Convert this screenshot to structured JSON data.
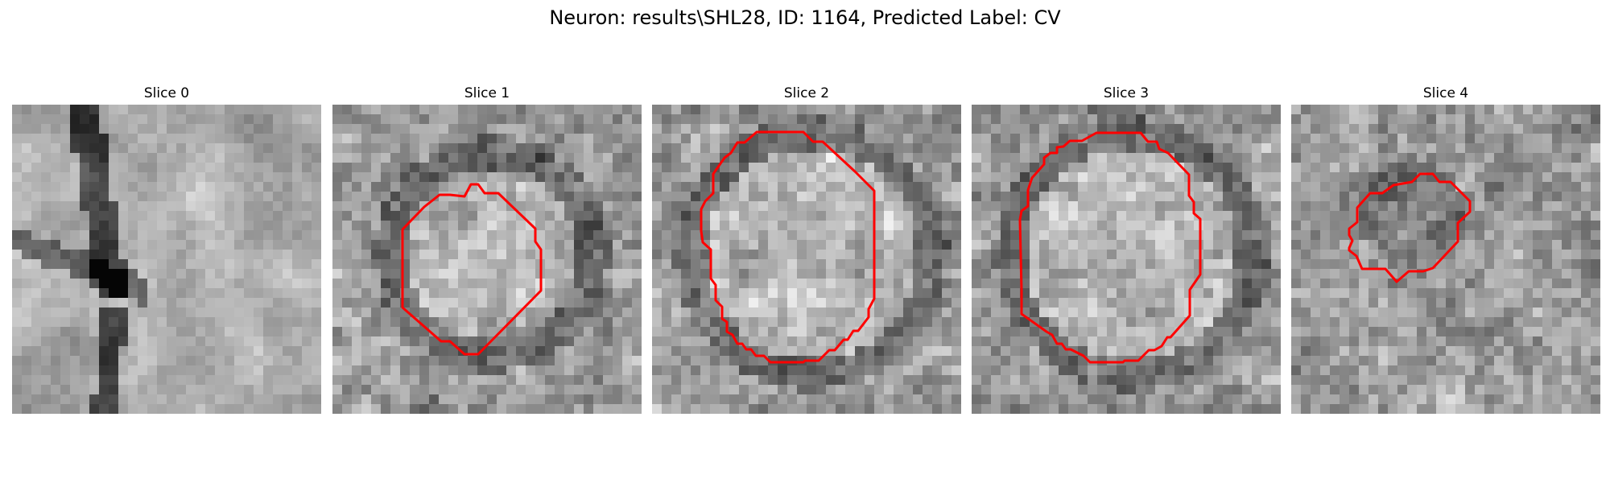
{
  "figure": {
    "title": "Neuron: results\\SHL28, ID: 1164, Predicted Label: CV"
  },
  "outline_color": "#ff0000",
  "panels": [
    {
      "title": "Slice 0",
      "has_outline": false,
      "seed": 11
    },
    {
      "title": "Slice 1",
      "has_outline": true,
      "seed": 23
    },
    {
      "title": "Slice 2",
      "has_outline": true,
      "seed": 37
    },
    {
      "title": "Slice 3",
      "has_outline": true,
      "seed": 53
    },
    {
      "title": "Slice 4",
      "has_outline": true,
      "seed": 71
    }
  ]
}
